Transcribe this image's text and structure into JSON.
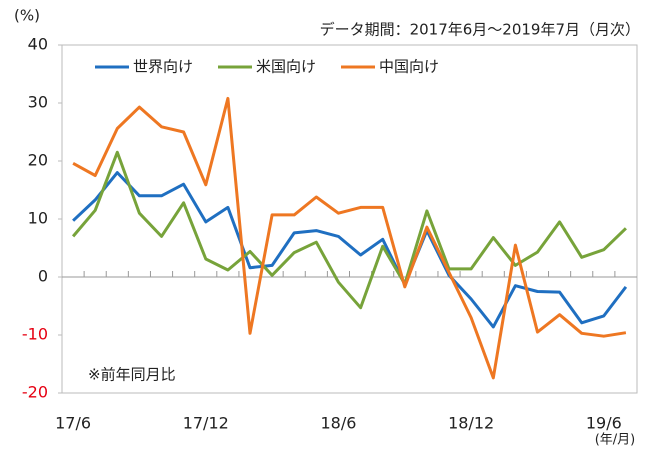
{
  "chart_data": {
    "type": "line",
    "subtitle": "データ期間：2017年6月～2019年7月（月次）",
    "y_unit": "(%)",
    "x_unit": "(年/月)",
    "note": "※前年同月比",
    "categories": [
      "17/6",
      null,
      null,
      null,
      null,
      null,
      "17/12",
      null,
      null,
      null,
      null,
      null,
      "18/6",
      null,
      null,
      null,
      null,
      null,
      "18/12",
      null,
      null,
      null,
      null,
      null,
      "19/6",
      null
    ],
    "series": [
      {
        "name": "世界向け",
        "color": "#1f6fc1",
        "values": [
          9.7,
          13.3,
          18,
          14,
          14,
          16,
          9.5,
          12,
          1.6,
          2,
          7.6,
          8,
          7,
          3.8,
          6.5,
          -1.3,
          8,
          0.3,
          -3.8,
          -8.6,
          -1.5,
          -2.5,
          -2.6,
          -7.9,
          -6.7,
          -1.7
        ]
      },
      {
        "name": "米国向け",
        "color": "#77a33a",
        "values": [
          7,
          11.5,
          21.5,
          11,
          7,
          12.8,
          3.1,
          1.2,
          4.4,
          0.3,
          4.2,
          6,
          -0.9,
          -5.3,
          5.3,
          -1.2,
          11.4,
          1.4,
          1.4,
          6.8,
          2,
          4.3,
          9.5,
          3.4,
          4.7,
          8.4
        ]
      },
      {
        "name": "中国向け",
        "color": "#ee7722",
        "values": [
          19.6,
          17.5,
          25.6,
          29.3,
          25.9,
          25,
          15.9,
          30.8,
          -9.7,
          10.7,
          10.7,
          13.8,
          11,
          12,
          12,
          -1.7,
          8.6,
          0.8,
          -7,
          -17.4,
          5.5,
          -9.5,
          -6.5,
          -9.7,
          -10.2,
          -9.6
        ]
      }
    ],
    "ylim": [
      -20,
      40
    ],
    "yticks": [
      -20,
      -10,
      0,
      10,
      20,
      30,
      40
    ],
    "negative_tick_color": "#e60012",
    "grid": false,
    "legend": "top-left"
  }
}
